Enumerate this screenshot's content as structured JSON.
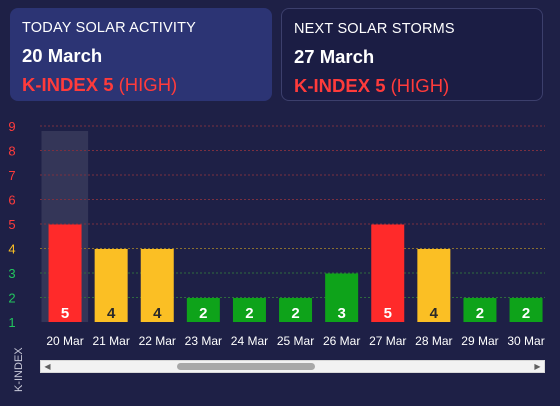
{
  "today": {
    "title": "TODAY SOLAR ACTIVITY",
    "date": "20 March",
    "kindex_label": "K-INDEX 5",
    "level": "(HIGH)"
  },
  "next": {
    "title": "NEXT SOLAR STORMS",
    "date": "27 March",
    "kindex_label": "K-INDEX 5",
    "level": "(HIGH)"
  },
  "colors": {
    "high": "#ff2a2a",
    "moderate": "#fbbf24",
    "low": "#0ea31a",
    "background": "#1e2046"
  },
  "chart_data": {
    "type": "bar",
    "ylabel": "K-INDEX",
    "ylim": [
      1,
      9
    ],
    "yticks": [
      1,
      2,
      3,
      4,
      5,
      6,
      7,
      8,
      9
    ],
    "ytick_colors": [
      "#22c55e",
      "#22c55e",
      "#22c55e",
      "#fbbf24",
      "#ff3b3b",
      "#ff3b3b",
      "#ff3b3b",
      "#ff3b3b",
      "#ff3b3b"
    ],
    "categories": [
      "20 Mar",
      "21 Mar",
      "22 Mar",
      "23 Mar",
      "24 Mar",
      "25 Mar",
      "26 Mar",
      "27 Mar",
      "28 Mar",
      "29 Mar",
      "30 Mar"
    ],
    "values": [
      5,
      4,
      4,
      2,
      2,
      2,
      3,
      5,
      4,
      2,
      2
    ],
    "highlighted_category": "20 Mar",
    "grid": true
  },
  "scrollbar": {
    "left_arrow": "◀",
    "right_arrow": "▶"
  }
}
